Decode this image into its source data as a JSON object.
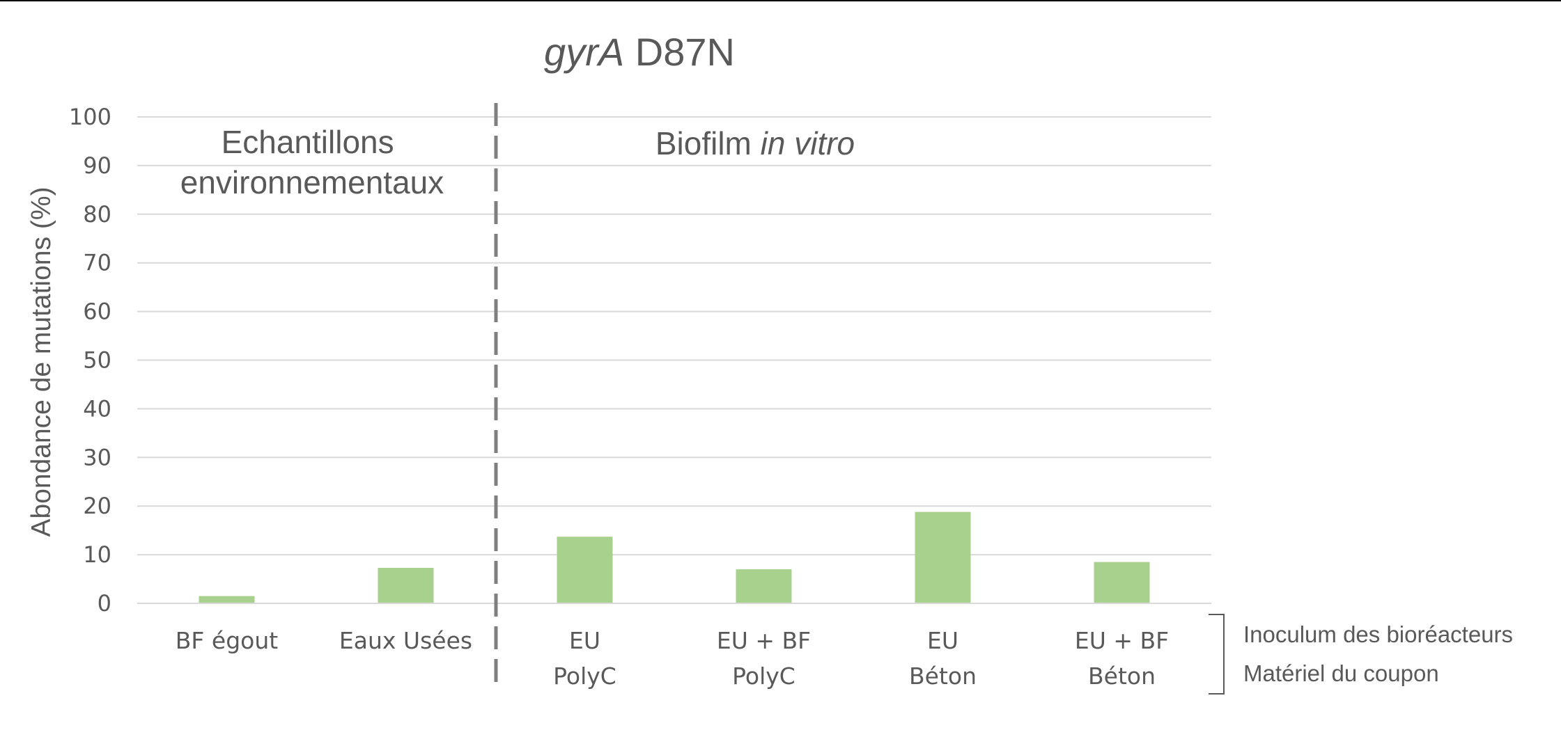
{
  "chart_data": {
    "type": "bar",
    "title_italic": "gyrA",
    "title_rest": "D87N",
    "ylabel": "Abondance de mutations (%)",
    "xlabel": "",
    "ylim": [
      0,
      100
    ],
    "yticks": [
      0,
      10,
      20,
      30,
      40,
      50,
      60,
      70,
      80,
      90,
      100
    ],
    "grid": true,
    "bar_color": "#a9d18e",
    "categories": [
      {
        "line1": "BF égout",
        "line2": ""
      },
      {
        "line1": "Eaux Usées",
        "line2": ""
      },
      {
        "line1": "EU",
        "line2": "PolyC"
      },
      {
        "line1": "EU + BF",
        "line2": "PolyC"
      },
      {
        "line1": "EU",
        "line2": "Béton"
      },
      {
        "line1": "EU + BF",
        "line2": "Béton"
      }
    ],
    "values": [
      1.5,
      7.3,
      13.7,
      7.0,
      18.8,
      8.5
    ],
    "divider_after_index": 1,
    "sections": [
      {
        "line1": "Echantillons",
        "line2": "environnementaux"
      },
      {
        "normal": "Biofilm ",
        "italic": "in vitro"
      }
    ],
    "side_labels": [
      "Inoculum des bioréacteurs",
      "Matériel du coupon"
    ]
  }
}
